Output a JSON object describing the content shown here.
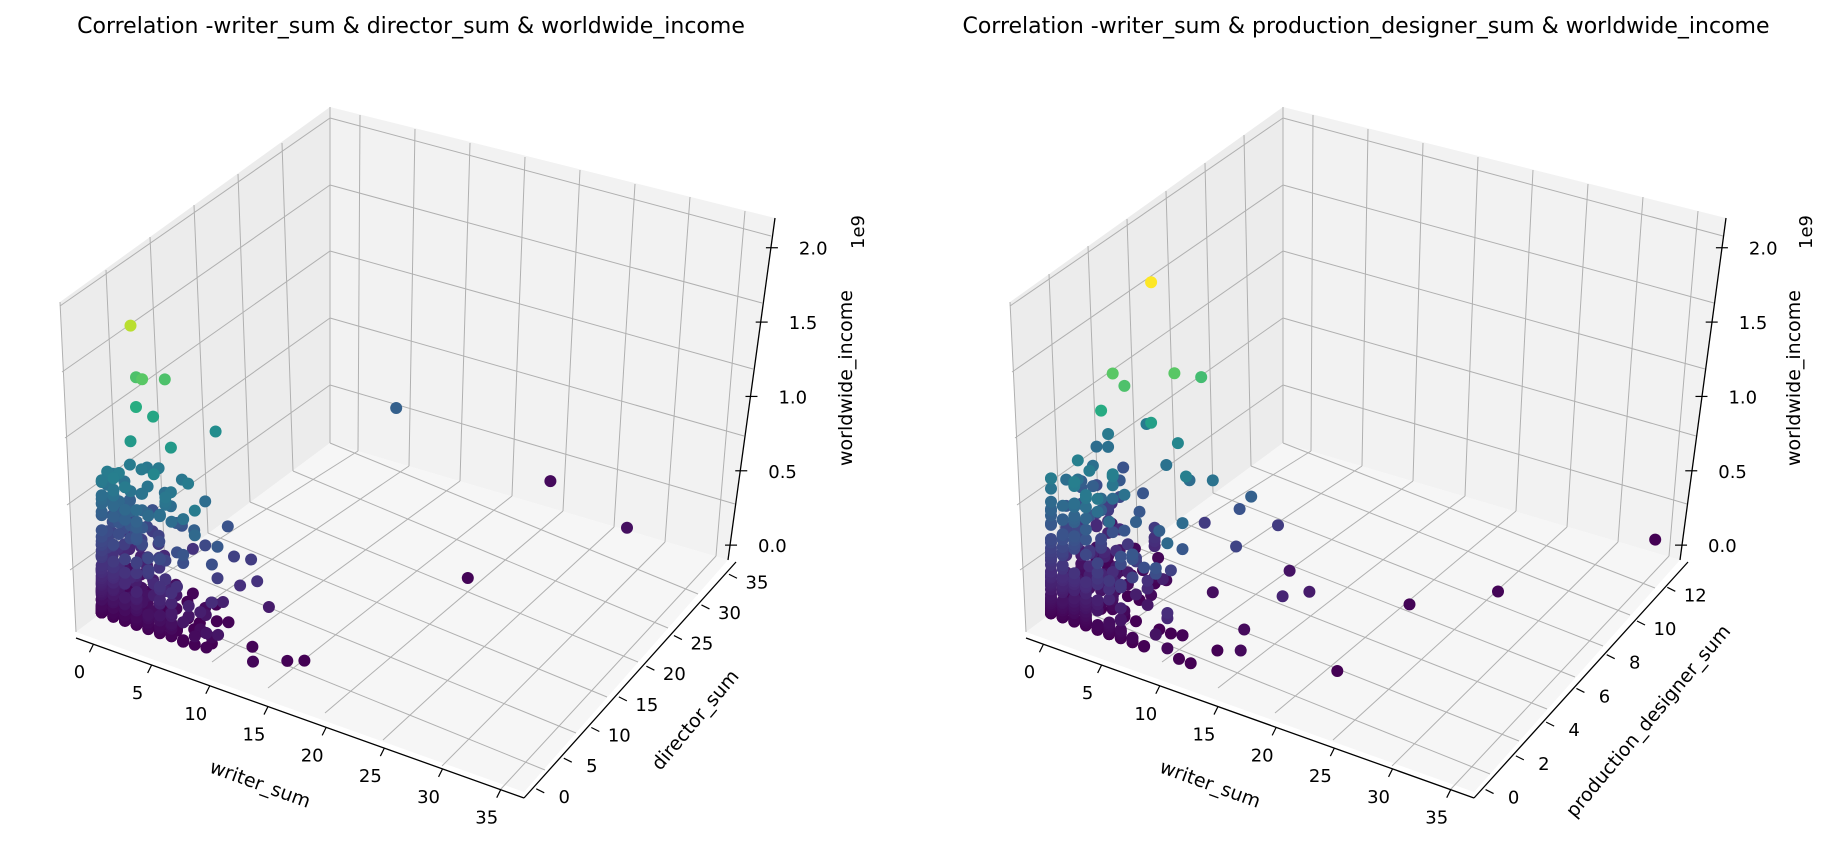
{
  "chart_data": [
    {
      "type": "scatter",
      "title": "Correlation -writer_sum & director_sum & worldwide_income",
      "xlabel": "writer_sum",
      "ylabel": "director_sum",
      "zlabel": "worldwide_income",
      "z_offset_label": "1e9",
      "colormap": "viridis",
      "xticks": [
        "0",
        "5",
        "10",
        "15",
        "20",
        "25",
        "30",
        "35"
      ],
      "yticks": [
        "0",
        "5",
        "10",
        "15",
        "20",
        "25",
        "30",
        "35"
      ],
      "zticks": [
        "0.0",
        "0.5",
        "1.0",
        "1.5",
        "2.0"
      ],
      "xlim": [
        -1.5,
        37
      ],
      "ylim": [
        -1.5,
        37
      ],
      "zlim": [
        -0.1,
        2.2
      ],
      "points": [
        {
          "x": 2,
          "y": 1,
          "z": 1.75
        },
        {
          "x": 2,
          "y": 2,
          "z": 1.4
        },
        {
          "x": 3,
          "y": 1,
          "z": 1.45
        },
        {
          "x": 4,
          "y": 3,
          "z": 1.4
        },
        {
          "x": 2,
          "y": 2,
          "z": 1.22
        },
        {
          "x": 3,
          "y": 3,
          "z": 1.15
        },
        {
          "x": 5,
          "y": 2,
          "z": 1.05
        },
        {
          "x": 6,
          "y": 8,
          "z": 0.95
        },
        {
          "x": 2,
          "y": 1,
          "z": 1.05
        },
        {
          "x": 4,
          "y": 1,
          "z": 0.9
        },
        {
          "x": 6,
          "y": 3,
          "z": 0.82
        },
        {
          "x": 7,
          "y": 4,
          "z": 0.7
        },
        {
          "x": 9,
          "y": 2,
          "z": 0.55
        },
        {
          "x": 8,
          "y": 6,
          "z": 0.5
        },
        {
          "x": 9,
          "y": 5,
          "z": 0.38
        },
        {
          "x": 10,
          "y": 6,
          "z": 0.35
        },
        {
          "x": 7,
          "y": 2,
          "z": 0.6
        },
        {
          "x": 11,
          "y": 5,
          "z": 0.28
        },
        {
          "x": 13,
          "y": 26,
          "z": 0.6
        },
        {
          "x": 22,
          "y": 35,
          "z": 0.05
        },
        {
          "x": 30,
          "y": 32,
          "z": 0.08
        },
        {
          "x": 22,
          "y": 20,
          "z": 0.02
        },
        {
          "x": 15,
          "y": 2,
          "z": 0.01
        },
        {
          "x": 12,
          "y": 2,
          "z": 0.02
        },
        {
          "x": 13,
          "y": 0,
          "z": 0.03
        },
        {
          "x": 12,
          "y": 5,
          "z": 0.15
        },
        {
          "x": 16,
          "y": 3,
          "z": 0.0
        }
      ]
    },
    {
      "type": "scatter",
      "title": "Correlation -writer_sum & production_designer_sum & worldwide_income",
      "xlabel": "writer_sum",
      "ylabel": "production_designer_sum",
      "zlabel": "worldwide_income",
      "z_offset_label": "1e9",
      "colormap": "viridis",
      "xticks": [
        "0",
        "5",
        "10",
        "15",
        "20",
        "25",
        "30",
        "35"
      ],
      "yticks": [
        "0",
        "2",
        "4",
        "6",
        "8",
        "10",
        "12"
      ],
      "zticks": [
        "0.0",
        "0.5",
        "1.0",
        "1.5",
        "2.0"
      ],
      "xlim": [
        -1.5,
        37
      ],
      "ylim": [
        -0.5,
        13.5
      ],
      "zlim": [
        -0.1,
        2.2
      ],
      "points": [
        {
          "x": 6,
          "y": 2,
          "z": 1.95
        },
        {
          "x": 4,
          "y": 1,
          "z": 1.45
        },
        {
          "x": 8,
          "y": 2,
          "z": 1.45
        },
        {
          "x": 5,
          "y": 1,
          "z": 1.4
        },
        {
          "x": 9,
          "y": 3,
          "z": 1.35
        },
        {
          "x": 3,
          "y": 1,
          "z": 1.2
        },
        {
          "x": 6,
          "y": 2,
          "z": 1.1
        },
        {
          "x": 7,
          "y": 3,
          "z": 0.9
        },
        {
          "x": 9,
          "y": 2,
          "z": 0.85
        },
        {
          "x": 10,
          "y": 3,
          "z": 0.75
        },
        {
          "x": 12,
          "y": 4,
          "z": 0.6
        },
        {
          "x": 11,
          "y": 4,
          "z": 0.5
        },
        {
          "x": 13,
          "y": 5,
          "z": 0.35
        },
        {
          "x": 12,
          "y": 3,
          "z": 0.4
        },
        {
          "x": 8,
          "y": 3,
          "z": 0.7
        },
        {
          "x": 35,
          "y": 13,
          "z": 0.0
        },
        {
          "x": 28,
          "y": 8,
          "z": 0.02
        },
        {
          "x": 23,
          "y": 6,
          "z": 0.02
        },
        {
          "x": 22,
          "y": 2,
          "z": 0.0
        },
        {
          "x": 17,
          "y": 4,
          "z": 0.15
        },
        {
          "x": 16,
          "y": 3,
          "z": 0.2
        },
        {
          "x": 14,
          "y": 2,
          "z": 0.05
        },
        {
          "x": 13,
          "y": 1,
          "z": 0.0
        },
        {
          "x": 12,
          "y": 0,
          "z": 0.0
        },
        {
          "x": 15,
          "y": 1,
          "z": 0.05
        },
        {
          "x": 14,
          "y": 5,
          "z": 0.1
        }
      ]
    }
  ]
}
